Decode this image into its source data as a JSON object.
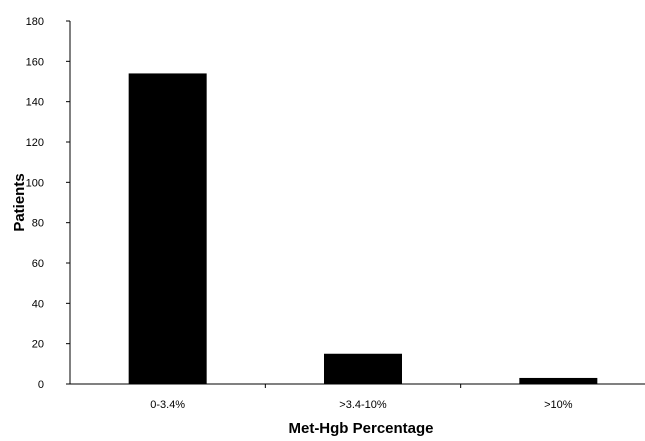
{
  "chart_data": {
    "type": "bar",
    "title": "",
    "xlabel": "Met-Hgb Percentage",
    "ylabel": "Patients",
    "categories": [
      "0-3.4%",
      ">3.4-10%",
      ">10%"
    ],
    "values": [
      154,
      15,
      3
    ],
    "ylim": [
      0,
      180
    ],
    "yticks": [
      0,
      20,
      40,
      60,
      80,
      100,
      120,
      140,
      160,
      180
    ],
    "grid": false,
    "legend": "none",
    "bar_color": "#000000"
  }
}
